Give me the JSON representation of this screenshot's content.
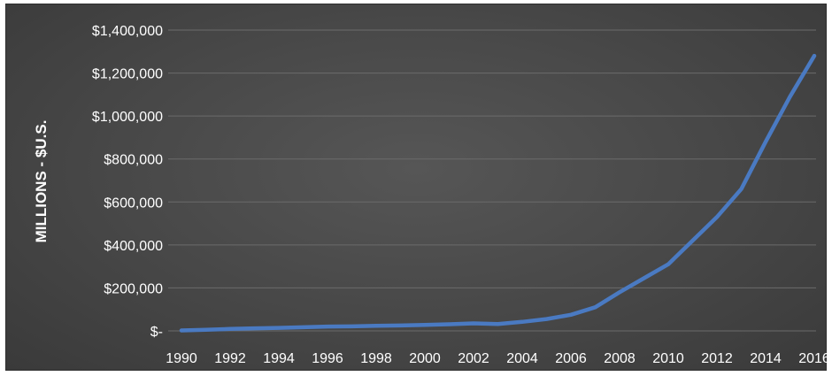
{
  "chart_data": {
    "type": "line",
    "title": "",
    "xlabel": "",
    "ylabel": "MILLIONS - $U.S.",
    "ylim": [
      0,
      1400000
    ],
    "grid": true,
    "y_tick_labels": [
      "$-",
      "$200,000",
      "$400,000",
      "$600,000",
      "$800,000",
      "$1,000,000",
      "$1,200,000",
      "$1,400,000"
    ],
    "y_tick_values": [
      0,
      200000,
      400000,
      600000,
      800000,
      1000000,
      1200000,
      1400000
    ],
    "x_tick_labels": [
      "1990",
      "1992",
      "1994",
      "1996",
      "1998",
      "2000",
      "2002",
      "2004",
      "2006",
      "2008",
      "2010",
      "2012",
      "2014",
      "2016"
    ],
    "x": [
      1990,
      1991,
      1992,
      1993,
      1994,
      1995,
      1996,
      1997,
      1998,
      1999,
      2000,
      2001,
      2002,
      2003,
      2004,
      2005,
      2006,
      2007,
      2008,
      2009,
      2010,
      2011,
      2012,
      2013,
      2014,
      2015,
      2016
    ],
    "series": [
      {
        "color": "#4a7ac2",
        "values": [
          2000,
          5000,
          9000,
          12000,
          14000,
          17000,
          20000,
          21000,
          24000,
          25000,
          28000,
          31000,
          35000,
          32000,
          42000,
          55000,
          75000,
          110000,
          180000,
          245000,
          310000,
          420000,
          530000,
          660000,
          880000,
          1090000,
          1280000
        ]
      }
    ]
  }
}
